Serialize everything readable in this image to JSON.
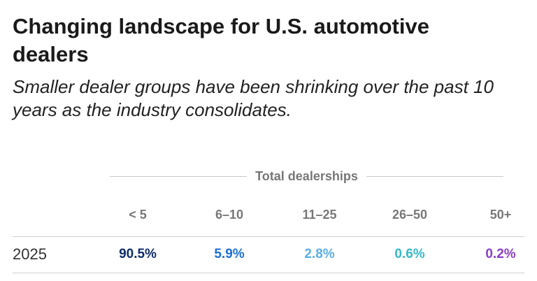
{
  "header": {
    "title": "Changing landscape for U.S. automotive dealers",
    "subtitle": "Smaller dealer groups have been shrinking over the past 10 years as the industry consolidates."
  },
  "table": {
    "group_header": "Total dealerships",
    "columns": [
      "< 5",
      "6–10",
      "11–25",
      "26–50",
      "50+"
    ],
    "rows": [
      [
        "2025",
        "90.5%",
        "5.9%",
        "2.8%",
        "0.6%",
        "0.2%"
      ]
    ]
  }
}
